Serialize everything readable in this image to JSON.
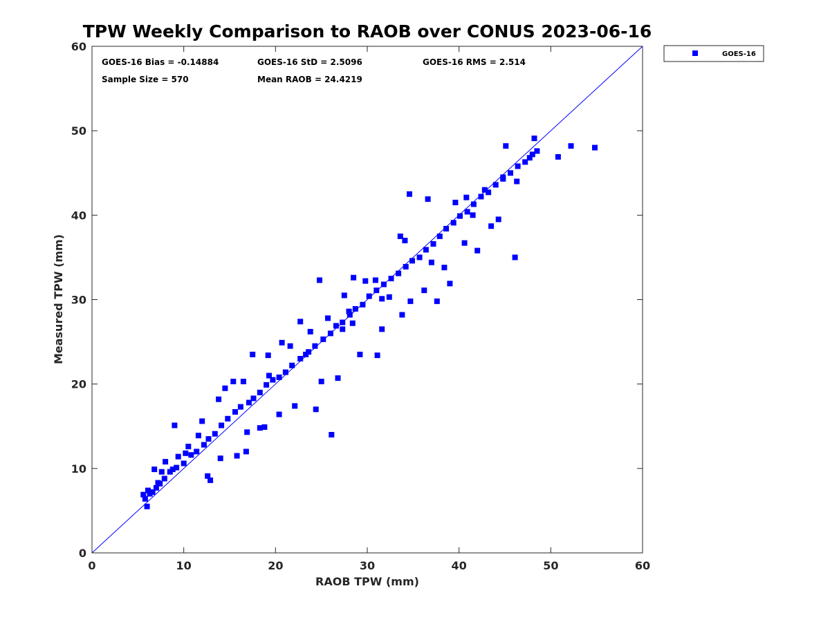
{
  "chart_data": {
    "type": "scatter",
    "title": "TPW Weekly Comparison to RAOB over CONUS 2023-06-16",
    "xlabel": "RAOB TPW (mm)",
    "ylabel": "Measured TPW (mm)",
    "xlim": [
      0,
      60
    ],
    "ylim": [
      0,
      60
    ],
    "xticks": [
      "0",
      "10",
      "20",
      "30",
      "40",
      "50",
      "60"
    ],
    "yticks": [
      "0",
      "10",
      "20",
      "30",
      "40",
      "50",
      "60"
    ],
    "grid": false,
    "legend_position": "outside-top-right",
    "reference_line": {
      "name": "1:1 line",
      "from": [
        0,
        0
      ],
      "to": [
        60,
        60
      ],
      "color": "#0000ff"
    },
    "stats": {
      "bias": "GOES-16 Bias = -0.14884",
      "std": "GOES-16 StD = 2.5096",
      "rms": "GOES-16 RMS = 2.514",
      "sample_size": "Sample Size = 570",
      "mean_raob": "Mean RAOB = 24.4219"
    },
    "series": [
      {
        "name": "GOES-16",
        "color": "#0000ff",
        "marker": "square",
        "x": [
          5.6,
          6.0,
          5.8,
          6.3,
          6.6,
          7.0,
          7.4,
          7.9,
          8.5,
          9.2,
          10.0,
          10.8,
          11.4,
          12.2,
          12.7,
          13.4,
          14.1,
          14.8,
          15.6,
          16.2,
          17.1,
          17.6,
          18.3,
          19.0,
          19.7,
          20.4,
          21.1,
          21.8,
          22.7,
          23.6,
          24.3,
          25.2,
          26.0,
          26.6,
          27.3,
          28.1,
          28.7,
          29.5,
          30.2,
          31.0,
          31.8,
          32.6,
          33.4,
          34.2,
          34.9,
          35.7,
          36.4,
          37.2,
          37.9,
          38.6,
          39.4,
          40.1,
          40.9,
          41.6,
          42.4,
          43.2,
          44.0,
          44.8,
          45.6,
          46.4,
          47.2,
          48.0,
          48.5,
          50.8,
          52.2,
          54.8,
          9.0,
          12.6,
          14.0,
          16.8,
          18.3,
          20.4,
          23.3,
          26.1,
          26.8,
          24.4,
          27.3,
          28.4,
          31.1,
          34.7,
          37.6,
          39.0,
          42.0,
          44.3,
          46.1,
          34.6,
          36.6,
          40.8,
          42.8,
          45.1,
          47.7,
          33.6,
          30.9,
          28.5,
          27.5,
          24.8,
          22.7,
          20.7,
          19.2,
          17.5,
          15.4,
          14.5,
          13.8,
          12.0,
          11.6,
          10.5,
          10.2,
          9.4,
          8.8,
          8.0,
          7.6,
          6.8,
          7.2,
          6.1,
          12.9,
          15.8,
          16.9,
          18.8,
          22.1,
          25.0,
          29.2,
          31.6,
          33.8,
          36.2,
          38.4,
          40.6,
          43.5,
          25.7,
          29.8,
          34.1,
          39.6,
          44.8,
          16.5,
          21.6,
          28.0,
          32.4,
          37.0,
          41.5,
          46.3,
          48.2,
          19.3,
          23.8,
          31.6
        ],
        "y": [
          6.9,
          5.5,
          6.4,
          7.0,
          7.2,
          7.7,
          8.2,
          8.8,
          9.6,
          10.1,
          10.6,
          11.6,
          12.0,
          12.8,
          13.5,
          14.1,
          15.1,
          15.9,
          16.7,
          17.3,
          17.8,
          18.3,
          19.0,
          19.9,
          20.5,
          20.8,
          21.4,
          22.2,
          23.0,
          23.8,
          24.5,
          25.3,
          26.0,
          26.9,
          27.3,
          28.2,
          28.9,
          29.4,
          30.4,
          31.1,
          31.8,
          32.5,
          33.1,
          33.9,
          34.6,
          35.0,
          35.9,
          36.6,
          37.5,
          38.4,
          39.1,
          39.9,
          40.4,
          41.3,
          42.2,
          42.7,
          43.6,
          44.3,
          45.0,
          45.8,
          46.3,
          47.2,
          47.6,
          46.9,
          48.2,
          48.0,
          15.1,
          9.1,
          11.2,
          12.0,
          14.8,
          16.4,
          23.5,
          14.0,
          20.7,
          17.0,
          26.5,
          27.2,
          23.4,
          29.8,
          29.8,
          31.9,
          35.8,
          39.5,
          35.0,
          42.5,
          41.9,
          42.1,
          43.0,
          48.2,
          46.8,
          37.5,
          32.3,
          32.6,
          30.5,
          32.3,
          27.4,
          24.9,
          23.4,
          23.5,
          20.3,
          19.5,
          18.2,
          15.6,
          13.9,
          12.6,
          11.8,
          11.4,
          9.9,
          10.8,
          9.6,
          9.9,
          8.3,
          7.4,
          8.6,
          11.5,
          14.3,
          14.9,
          17.4,
          20.3,
          23.5,
          26.5,
          28.2,
          31.1,
          33.8,
          36.7,
          38.7,
          27.8,
          32.2,
          37.0,
          41.5,
          44.5,
          20.3,
          24.5,
          28.6,
          30.3,
          34.4,
          40.0,
          44.0,
          49.1,
          21.0,
          26.2,
          30.1
        ]
      }
    ]
  }
}
